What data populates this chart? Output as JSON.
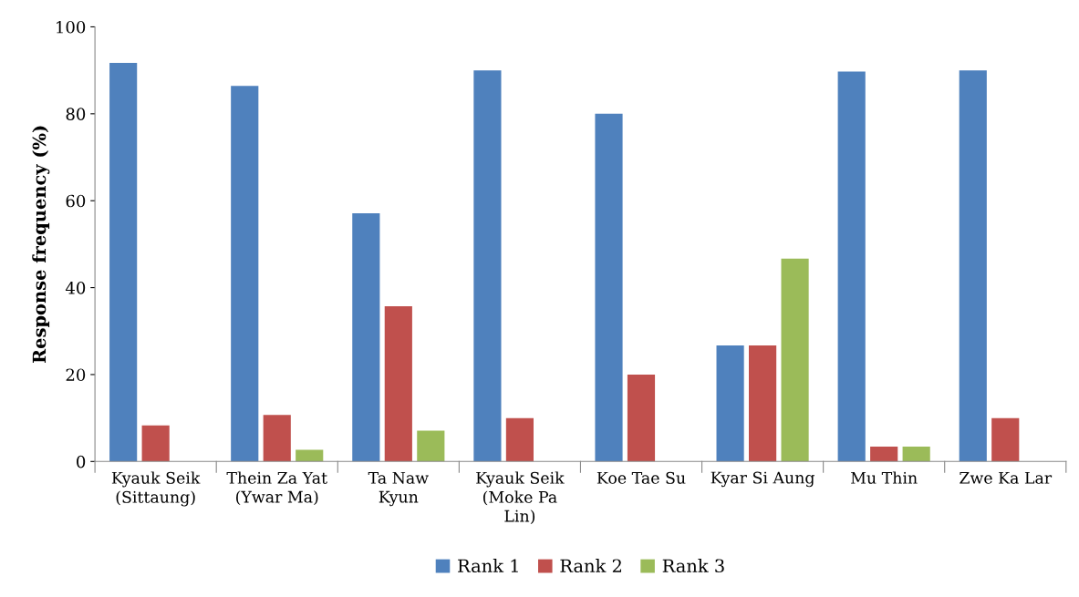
{
  "chart_data": {
    "type": "bar",
    "ylabel": "Response frequency (%)",
    "categories": [
      "Kyauk Seik\n(Sittaung)",
      "Thein Za Yat\n(Ywar Ma)",
      "Ta Naw\nKyun",
      "Kyauk Seik\n(Moke Pa\nLin)",
      "Koe Tae Su",
      "Kyar Si Aung",
      "Mu Thin",
      "Zwe Ka Lar"
    ],
    "series": [
      {
        "name": "Rank 1",
        "color": "#4f81bd",
        "values": [
          91.7,
          86.4,
          57.1,
          90,
          80,
          26.7,
          89.7,
          90
        ]
      },
      {
        "name": "Rank 2",
        "color": "#c0504d",
        "values": [
          8.3,
          10.7,
          35.7,
          10,
          20,
          26.7,
          3.4,
          10
        ]
      },
      {
        "name": "Rank 3",
        "color": "#9bbb59",
        "values": [
          0,
          2.7,
          7.1,
          0,
          0,
          46.7,
          3.4,
          0
        ]
      }
    ],
    "ylim": [
      0,
      100
    ],
    "yticks": [
      0,
      20,
      40,
      60,
      80,
      100
    ],
    "grid": false,
    "legend": "bottom"
  }
}
